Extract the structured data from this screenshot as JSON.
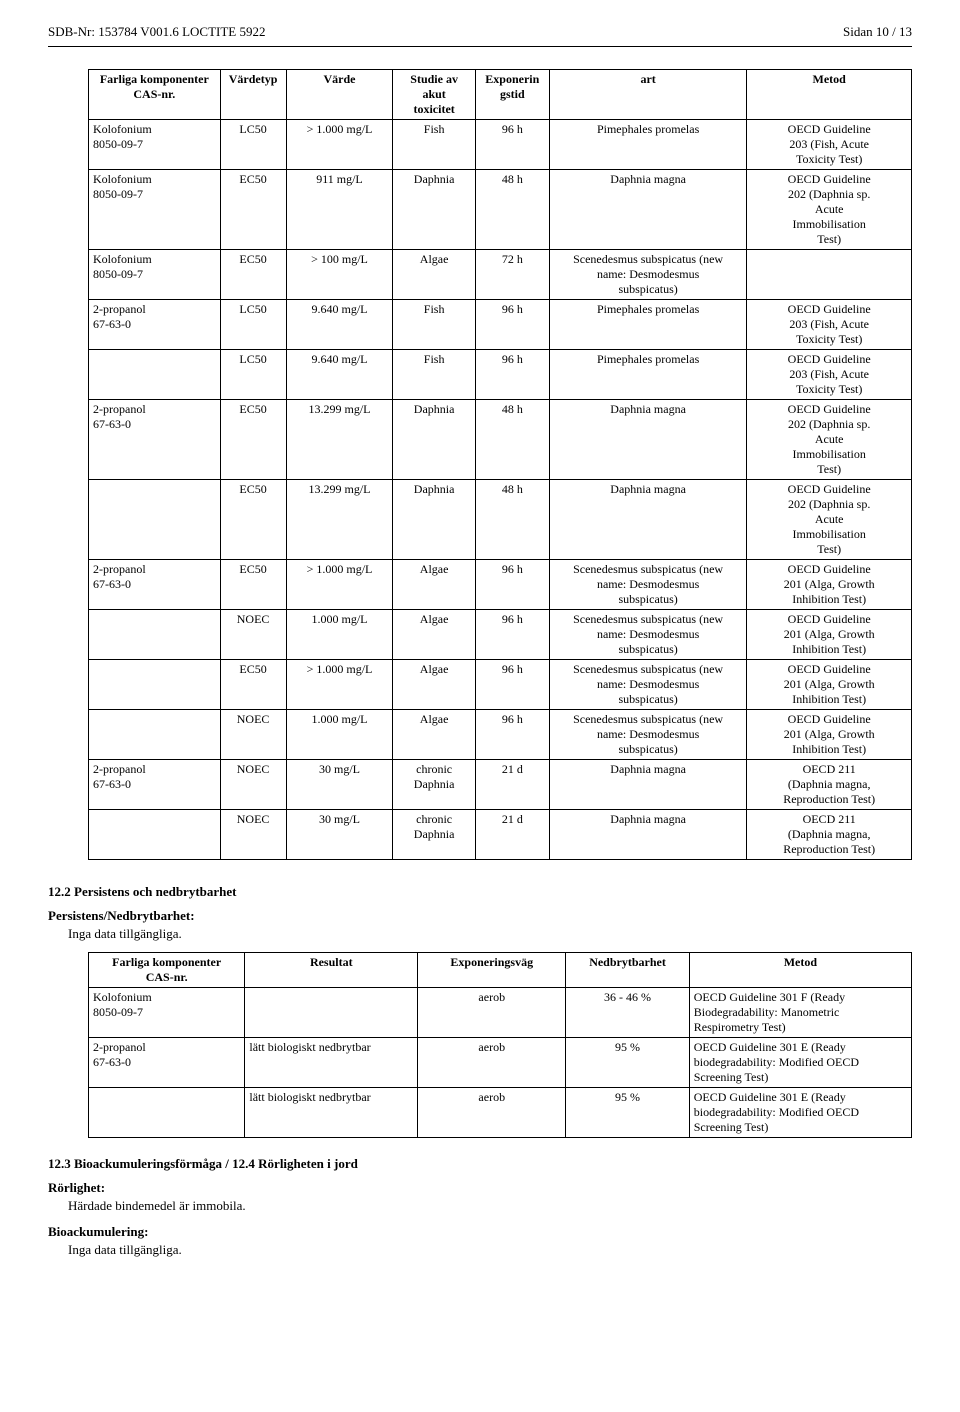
{
  "header": {
    "left": "SDB-Nr: 153784   V001.6   LOCTITE 5922",
    "right": "Sidan 10 / 13"
  },
  "t1": {
    "head": [
      "Farliga komponenter\nCAS-nr.",
      "Värdetyp",
      "Värde",
      "Studie av\nakut\ntoxicitet",
      "Exponerin\ngstid",
      "art",
      "Metod"
    ],
    "rows": [
      {
        "c": [
          "Kolofonium\n8050-09-7",
          "LC50",
          "> 1.000 mg/L",
          "Fish",
          "96 h",
          "Pimephales promelas",
          "OECD Guideline\n203 (Fish, Acute\nToxicity Test)"
        ]
      },
      {
        "c": [
          "Kolofonium\n8050-09-7",
          "EC50",
          "911 mg/L",
          "Daphnia",
          "48 h",
          "Daphnia magna",
          "OECD Guideline\n202 (Daphnia sp.\nAcute\nImmobilisation\nTest)"
        ]
      },
      {
        "c": [
          "Kolofonium\n8050-09-7",
          "EC50",
          "> 100 mg/L",
          "Algae",
          "72 h",
          "Scenedesmus subspicatus (new\nname: Desmodesmus\nsubspicatus)",
          ""
        ]
      },
      {
        "c": [
          "2-propanol\n67-63-0",
          "LC50",
          "9.640 mg/L",
          "Fish",
          "96 h",
          "Pimephales promelas",
          "OECD Guideline\n203 (Fish, Acute\nToxicity Test)"
        ]
      },
      {
        "c": [
          "",
          "LC50",
          "9.640 mg/L",
          "Fish",
          "96 h",
          "Pimephales promelas",
          "OECD Guideline\n203 (Fish, Acute\nToxicity Test)"
        ]
      },
      {
        "c": [
          "2-propanol\n67-63-0",
          "EC50",
          "13.299 mg/L",
          "Daphnia",
          "48 h",
          "Daphnia magna",
          "OECD Guideline\n202 (Daphnia sp.\nAcute\nImmobilisation\nTest)"
        ]
      },
      {
        "c": [
          "",
          "EC50",
          "13.299 mg/L",
          "Daphnia",
          "48 h",
          "Daphnia magna",
          "OECD Guideline\n202 (Daphnia sp.\nAcute\nImmobilisation\nTest)"
        ]
      },
      {
        "c": [
          "2-propanol\n67-63-0",
          "EC50",
          "> 1.000 mg/L",
          "Algae",
          "96 h",
          "Scenedesmus subspicatus (new\nname: Desmodesmus\nsubspicatus)",
          "OECD Guideline\n201 (Alga, Growth\nInhibition Test)"
        ]
      },
      {
        "c": [
          "",
          "NOEC",
          "1.000 mg/L",
          "Algae",
          "96 h",
          "Scenedesmus subspicatus (new\nname: Desmodesmus\nsubspicatus)",
          "OECD Guideline\n201 (Alga, Growth\nInhibition Test)"
        ]
      },
      {
        "c": [
          "",
          "EC50",
          "> 1.000 mg/L",
          "Algae",
          "96 h",
          "Scenedesmus subspicatus (new\nname: Desmodesmus\nsubspicatus)",
          "OECD Guideline\n201 (Alga, Growth\nInhibition Test)"
        ]
      },
      {
        "c": [
          "",
          "NOEC",
          "1.000 mg/L",
          "Algae",
          "96 h",
          "Scenedesmus subspicatus (new\nname: Desmodesmus\nsubspicatus)",
          "OECD Guideline\n201 (Alga, Growth\nInhibition Test)"
        ]
      },
      {
        "c": [
          "2-propanol\n67-63-0",
          "NOEC",
          "30 mg/L",
          "chronic\nDaphnia",
          "21 d",
          "Daphnia magna",
          "OECD 211\n(Daphnia magna,\nReproduction Test)"
        ]
      },
      {
        "c": [
          "",
          "NOEC",
          "30 mg/L",
          "chronic\nDaphnia",
          "21 d",
          "Daphnia magna",
          "OECD 211\n(Daphnia magna,\nReproduction Test)"
        ]
      }
    ]
  },
  "s122": {
    "title": "12.2 Persistens och nedbrytbarhet",
    "sub": "Persistens/Nedbrytbarhet:",
    "txt": "Inga data tillgängliga."
  },
  "t2": {
    "head": [
      "Farliga komponenter\nCAS-nr.",
      "Resultat",
      "Exponeringsväg",
      "Nedbrytbarhet",
      "Metod"
    ],
    "rows": [
      {
        "c": [
          "Kolofonium\n8050-09-7",
          "",
          "aerob",
          "36 - 46 %",
          "OECD Guideline 301 F (Ready\nBiodegradability: Manometric\nRespirometry Test)"
        ]
      },
      {
        "c": [
          "2-propanol\n67-63-0",
          "lätt biologiskt nedbrytbar",
          "aerob",
          "95 %",
          "OECD Guideline 301 E (Ready\nbiodegradability: Modified OECD\nScreening Test)"
        ]
      },
      {
        "c": [
          "",
          "lätt biologiskt nedbrytbar",
          "aerob",
          "95 %",
          "OECD Guideline 301 E (Ready\nbiodegradability: Modified OECD\nScreening Test)"
        ]
      }
    ]
  },
  "s123": {
    "title": "12.3 Bioackumuleringsförmåga / 12.4 Rörligheten i jord",
    "sub1": "Rörlighet:",
    "txt1": "Härdade bindemedel är immobila.",
    "sub2": "Bioackumulering:",
    "txt2": "Inga data tillgängliga."
  }
}
